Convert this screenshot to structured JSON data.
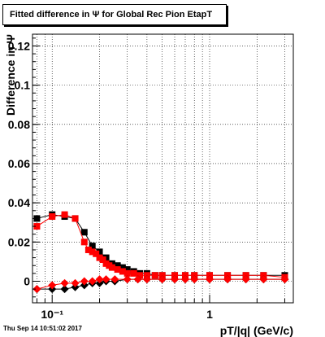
{
  "chart_data": {
    "type": "scatter",
    "title": "Fitted difference in Ψ for Global Rec Pion EtapT",
    "xlabel": "pT/|q| (GeV/c)",
    "ylabel": "Difference in Ψ",
    "x_scale": "log",
    "xlim": [
      0.075,
      3.4
    ],
    "ylim": [
      -0.011,
      0.126
    ],
    "grid": true,
    "x_tick_labels": [
      {
        "v": 0.1,
        "t": "10⁻¹"
      },
      {
        "v": 1,
        "t": "1"
      }
    ],
    "y_ticks": [
      0,
      0.02,
      0.04,
      0.06,
      0.08,
      0.1,
      0.12
    ],
    "y_tick_labels": [
      "0",
      "0.02",
      "0.04",
      "0.06",
      "0.08",
      "0.1",
      "0.12"
    ],
    "series": [
      {
        "color": "#000000",
        "marker": "square",
        "x": [
          0.08,
          0.1,
          0.12,
          0.14,
          0.16,
          0.18,
          0.2,
          0.22,
          0.24,
          0.26,
          0.28,
          0.3,
          0.33,
          0.36,
          0.4,
          0.45,
          0.5,
          0.6,
          0.7,
          0.8,
          1.0,
          1.3,
          1.7,
          2.2,
          3.0
        ],
        "y": [
          0.032,
          0.034,
          0.033,
          0.032,
          0.025,
          0.018,
          0.015,
          0.012,
          0.009,
          0.008,
          0.007,
          0.006,
          0.005,
          0.004,
          0.004,
          0.003,
          0.003,
          0.003,
          0.003,
          0.003,
          0.003,
          0.003,
          0.003,
          0.003,
          0.003
        ]
      },
      {
        "color": "#ff0000",
        "marker": "square",
        "x": [
          0.08,
          0.1,
          0.12,
          0.14,
          0.16,
          0.17,
          0.18,
          0.19,
          0.2,
          0.21,
          0.22,
          0.23,
          0.24,
          0.26,
          0.28,
          0.3,
          0.33,
          0.36,
          0.4,
          0.45,
          0.5,
          0.6,
          0.7,
          0.8,
          1.0,
          1.3,
          1.7,
          2.2,
          3.0
        ],
        "y": [
          0.028,
          0.033,
          0.034,
          0.032,
          0.02,
          0.016,
          0.015,
          0.014,
          0.012,
          0.011,
          0.009,
          0.008,
          0.007,
          0.006,
          0.005,
          0.004,
          0.004,
          0.003,
          0.003,
          0.003,
          0.003,
          0.003,
          0.003,
          0.003,
          0.003,
          0.003,
          0.003,
          0.003,
          0.002
        ]
      },
      {
        "color": "#000000",
        "marker": "diamond",
        "x": [
          0.08,
          0.1,
          0.12,
          0.14,
          0.16,
          0.18,
          0.2,
          0.22,
          0.25,
          0.3,
          0.35,
          0.4,
          0.5,
          0.6,
          0.7,
          0.8,
          1.0,
          1.3,
          1.7,
          2.2,
          3.0
        ],
        "y": [
          -0.004,
          -0.004,
          -0.004,
          -0.003,
          -0.002,
          -0.001,
          -0.001,
          0.0,
          0.0,
          0.001,
          0.001,
          0.001,
          0.001,
          0.001,
          0.001,
          0.001,
          0.001,
          0.001,
          0.001,
          0.001,
          0.001
        ]
      },
      {
        "color": "#ff0000",
        "marker": "diamond",
        "x": [
          0.08,
          0.1,
          0.12,
          0.14,
          0.16,
          0.18,
          0.2,
          0.22,
          0.25,
          0.3,
          0.35,
          0.4,
          0.5,
          0.6,
          0.7,
          0.8,
          1.0,
          1.3,
          1.7,
          2.2,
          3.0
        ],
        "y": [
          -0.004,
          -0.002,
          -0.001,
          -0.001,
          0.0,
          0.0,
          0.001,
          0.001,
          0.001,
          0.001,
          0.001,
          0.001,
          0.001,
          0.001,
          0.001,
          0.001,
          0.001,
          0.001,
          0.001,
          0.001,
          0.001
        ]
      }
    ]
  },
  "footer": "Thu Sep 14 10:51:02 2017"
}
